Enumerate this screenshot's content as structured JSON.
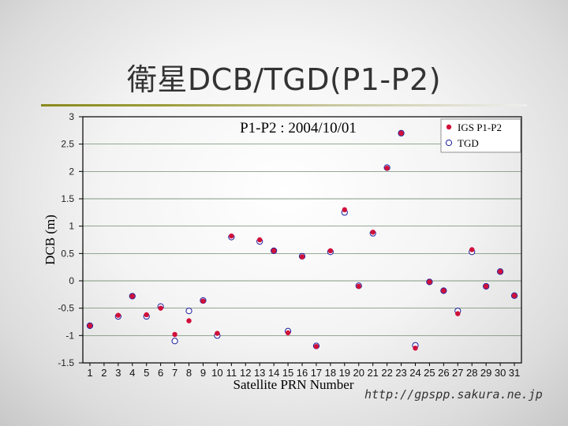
{
  "slide": {
    "title": "衛星DCB/TGD(P1-P2)",
    "footer_url": "http://gpspp.sakura.ne.jp"
  },
  "colors": {
    "title_rule": "#8a8a1e",
    "igs_marker": "#d0103a",
    "tgd_marker": "#1a1a99",
    "grid": "#5a7a5a"
  },
  "chart_data": {
    "type": "scatter",
    "title": "P1-P2 : 2004/10/01",
    "xlabel": "Satellite PRN Number",
    "ylabel": "DCB (m)",
    "xlim": [
      0.5,
      31.5
    ],
    "ylim": [
      -1.5,
      3
    ],
    "x_ticks": [
      1,
      2,
      3,
      4,
      5,
      6,
      7,
      8,
      9,
      10,
      11,
      12,
      13,
      14,
      15,
      16,
      17,
      18,
      19,
      20,
      21,
      22,
      23,
      24,
      25,
      26,
      27,
      28,
      29,
      30,
      31
    ],
    "y_ticks": [
      -1.5,
      -1,
      -0.5,
      0,
      0.5,
      1,
      1.5,
      2,
      2.5,
      3
    ],
    "y_tick_labels": [
      "-1.5",
      "-1",
      "-0.5",
      "0",
      "0.5",
      "1",
      "1.5",
      "2",
      "2.5",
      "3"
    ],
    "grid": "horizontal",
    "legend_position": "top-right",
    "series": [
      {
        "name": "IGS P1-P2",
        "marker": "filled-dot",
        "points": [
          [
            1,
            -0.82
          ],
          [
            3,
            -0.63
          ],
          [
            4,
            -0.28
          ],
          [
            5,
            -0.62
          ],
          [
            6,
            -0.5
          ],
          [
            7,
            -0.98
          ],
          [
            8,
            -0.73
          ],
          [
            9,
            -0.37
          ],
          [
            10,
            -0.96
          ],
          [
            11,
            0.82
          ],
          [
            13,
            0.75
          ],
          [
            14,
            0.55
          ],
          [
            15,
            -0.95
          ],
          [
            16,
            0.44
          ],
          [
            17,
            -1.2
          ],
          [
            18,
            0.55
          ],
          [
            19,
            1.3
          ],
          [
            20,
            -0.1
          ],
          [
            21,
            0.89
          ],
          [
            22,
            2.06
          ],
          [
            23,
            2.7
          ],
          [
            24,
            -1.23
          ],
          [
            25,
            -0.02
          ],
          [
            26,
            -0.18
          ],
          [
            27,
            -0.6
          ],
          [
            28,
            0.57
          ],
          [
            29,
            -0.1
          ],
          [
            30,
            0.17
          ],
          [
            31,
            -0.27
          ]
        ]
      },
      {
        "name": "TGD",
        "marker": "open-circle",
        "points": [
          [
            1,
            -0.82
          ],
          [
            3,
            -0.65
          ],
          [
            4,
            -0.28
          ],
          [
            5,
            -0.65
          ],
          [
            6,
            -0.47
          ],
          [
            7,
            -1.1
          ],
          [
            8,
            -0.55
          ],
          [
            9,
            -0.36
          ],
          [
            10,
            -1.0
          ],
          [
            11,
            0.8
          ],
          [
            13,
            0.72
          ],
          [
            14,
            0.55
          ],
          [
            15,
            -0.92
          ],
          [
            16,
            0.45
          ],
          [
            17,
            -1.19
          ],
          [
            18,
            0.53
          ],
          [
            19,
            1.25
          ],
          [
            20,
            -0.09
          ],
          [
            21,
            0.87
          ],
          [
            22,
            2.07
          ],
          [
            23,
            2.7
          ],
          [
            24,
            -1.18
          ],
          [
            25,
            -0.02
          ],
          [
            26,
            -0.18
          ],
          [
            27,
            -0.55
          ],
          [
            28,
            0.53
          ],
          [
            29,
            -0.1
          ],
          [
            30,
            0.17
          ],
          [
            31,
            -0.27
          ]
        ]
      }
    ]
  }
}
